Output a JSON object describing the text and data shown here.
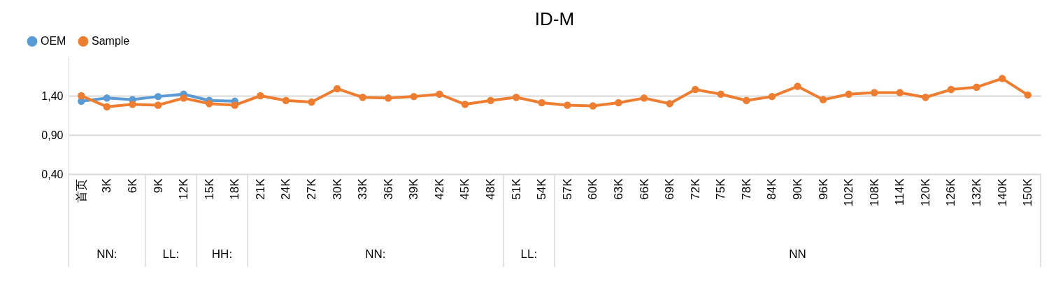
{
  "chart_data": {
    "type": "line",
    "title": "ID-M",
    "categories": [
      "首页",
      "3K",
      "6K",
      "9K",
      "12K",
      "15K",
      "18K",
      "21K",
      "24K",
      "27K",
      "30K",
      "33K",
      "36K",
      "39K",
      "42K",
      "45K",
      "48K",
      "51K",
      "54K",
      "57K",
      "60K",
      "63K",
      "66K",
      "69K",
      "72K",
      "75K",
      "78K",
      "84K",
      "90K",
      "96K",
      "102K",
      "108K",
      "114K",
      "120K",
      "126K",
      "132K",
      "140K",
      "150K"
    ],
    "series": [
      {
        "name": "OEM",
        "color": "#5b9bd5",
        "values": [
          1.33,
          1.37,
          1.35,
          1.39,
          1.42,
          1.34,
          1.33,
          null,
          null,
          null,
          null,
          null,
          null,
          null,
          null,
          null,
          null,
          null,
          null,
          null,
          null,
          null,
          null,
          null,
          null,
          null,
          null,
          null,
          null,
          null,
          null,
          null,
          null,
          null,
          null,
          null,
          null,
          null
        ]
      },
      {
        "name": "Sample",
        "color": "#ed7d31",
        "values": [
          1.4,
          1.26,
          1.29,
          1.28,
          1.37,
          1.3,
          1.28,
          1.4,
          1.34,
          1.32,
          1.49,
          1.38,
          1.37,
          1.39,
          1.42,
          1.29,
          1.34,
          1.38,
          1.31,
          1.28,
          1.27,
          1.31,
          1.37,
          1.3,
          1.48,
          1.42,
          1.34,
          1.39,
          1.52,
          1.35,
          1.42,
          1.44,
          1.44,
          1.38,
          1.48,
          1.51,
          1.62,
          1.41
        ]
      }
    ],
    "ylim": [
      0.4,
      1.9
    ],
    "yticks": [
      {
        "value": 0.4,
        "label": "0,40"
      },
      {
        "value": 0.9,
        "label": "0,90"
      },
      {
        "value": 1.4,
        "label": "1,40"
      }
    ],
    "annotations": [
      "NN:",
      "LL:",
      "HH:",
      "NN:",
      "LL:",
      "NN"
    ],
    "grid": "y",
    "legend": "top left",
    "marker": "circle",
    "line_style": "solid"
  }
}
